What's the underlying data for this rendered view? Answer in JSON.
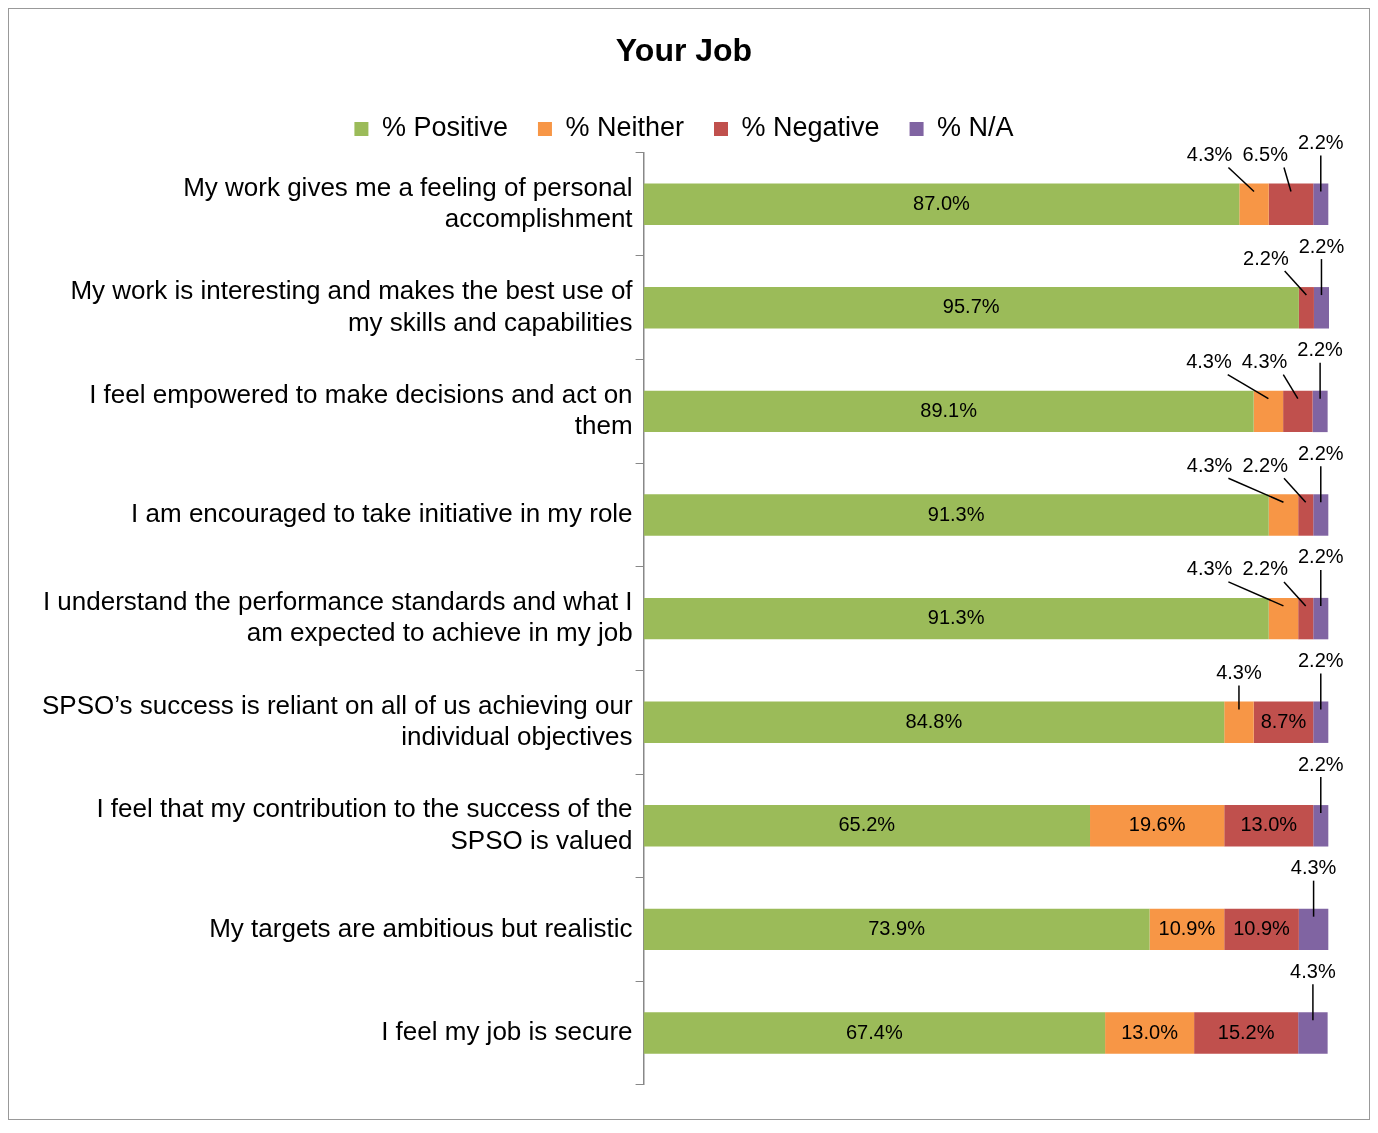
{
  "chart_data": {
    "type": "bar",
    "orientation": "horizontal",
    "stacked": true,
    "title": "Your Job",
    "legend": "top",
    "categories": [
      "My work gives me a feeling of personal accomplishment",
      "My work is interesting and makes the best use of my skills and capabilities",
      "I feel empowered to make decisions and act on them",
      "I am encouraged to take initiative in my role",
      "I understand the performance standards and what I am expected to achieve in my job",
      "SPSO’s success is reliant on all of us achieving our individual objectives",
      "I feel that my contribution to the success of the SPSO is valued",
      "My targets are ambitious but realistic",
      "I feel my job is secure"
    ],
    "series": [
      {
        "name": "% Positive",
        "color": "#9bbb59",
        "values": [
          87.0,
          95.7,
          89.1,
          91.3,
          91.3,
          84.8,
          65.2,
          73.9,
          67.4
        ],
        "value_labels": [
          "87.0%",
          "95.7%",
          "89.1%",
          "91.3%",
          "91.3%",
          "84.8%",
          "65.2%",
          "73.9%",
          "67.4%"
        ]
      },
      {
        "name": "% Neither",
        "color": "#f79646",
        "values": [
          4.3,
          null,
          4.3,
          4.3,
          4.3,
          4.3,
          19.6,
          10.9,
          13.0
        ],
        "value_labels": [
          "4.3%",
          null,
          "4.3%",
          "4.3%",
          "4.3%",
          "4.3%",
          "19.6%",
          "10.9%",
          "13.0%"
        ]
      },
      {
        "name": "% Negative",
        "color": "#c0504d",
        "values": [
          6.5,
          2.2,
          4.3,
          2.2,
          2.2,
          8.7,
          13.0,
          10.9,
          15.2
        ],
        "value_labels": [
          "6.5%",
          "2.2%",
          "4.3%",
          "2.2%",
          "2.2%",
          "8.7%",
          "13.0%",
          "10.9%",
          "15.2%"
        ]
      },
      {
        "name": "% N/A",
        "color": "#8064a2",
        "values": [
          2.2,
          2.2,
          2.2,
          2.2,
          2.2,
          2.2,
          2.2,
          4.3,
          4.3
        ],
        "value_labels": [
          "2.2%",
          "2.2%",
          "2.2%",
          "2.2%",
          "2.2%",
          "2.2%",
          "2.2%",
          "4.3%",
          "4.3%"
        ]
      }
    ]
  }
}
